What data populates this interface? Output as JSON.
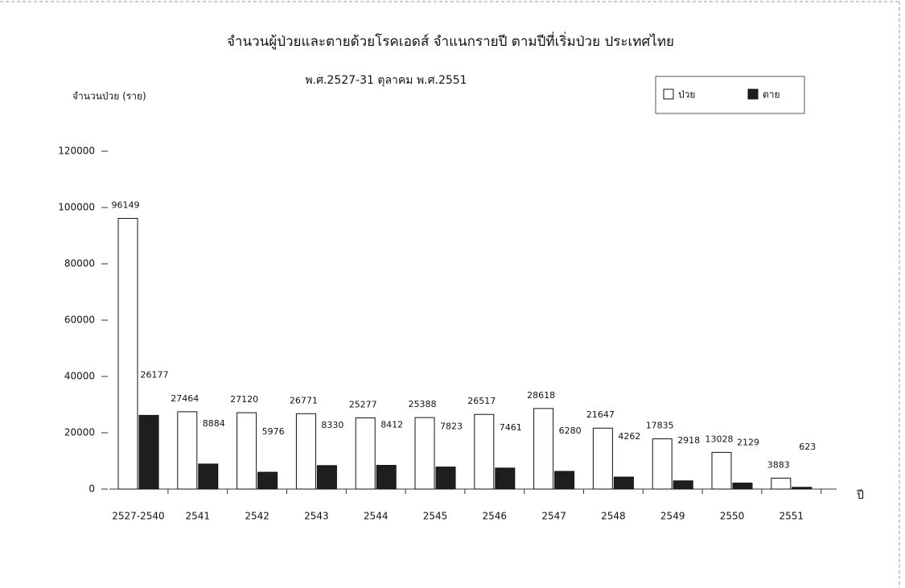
{
  "chart_data": {
    "type": "bar",
    "title": "จำนวนผู้ป่วยและตายด้วยโรคเอดส์ จำแนกรายปี ตามปีที่เริ่มป่วย ประเทศไทย",
    "subtitle": "พ.ศ.2527-31 ตุลาคม พ.ศ.2551",
    "y_label": "จำนวนป่วย (ราย)",
    "x_label": "ปี",
    "categories": [
      "2527-2540",
      "2541",
      "2542",
      "2543",
      "2544",
      "2545",
      "2546",
      "2547",
      "2548",
      "2549",
      "2550",
      "2551"
    ],
    "series": [
      {
        "name": "ป่วย",
        "color": "#ffffff",
        "values": [
          96149,
          27464,
          27120,
          26771,
          25277,
          25388,
          26517,
          28618,
          21647,
          17835,
          13028,
          3883
        ]
      },
      {
        "name": "ตาย",
        "color": "#1e1e1e",
        "values": [
          26177,
          8884,
          5976,
          8330,
          8412,
          7823,
          7461,
          6280,
          4262,
          2918,
          2129,
          623
        ]
      }
    ],
    "ylim": [
      0,
      120000
    ],
    "yticks": [
      0,
      20000,
      40000,
      60000,
      80000,
      100000,
      120000
    ],
    "legend": "top-right"
  }
}
